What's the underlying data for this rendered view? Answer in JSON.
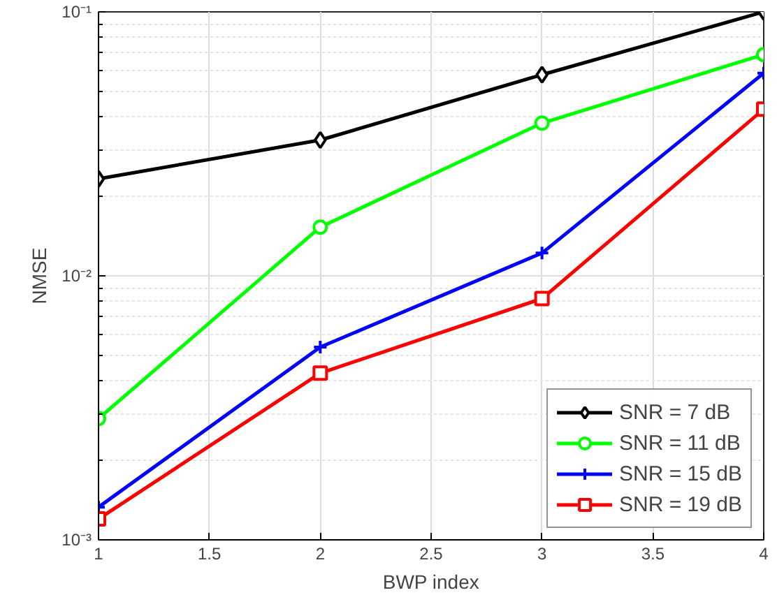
{
  "chart_data": {
    "type": "line",
    "xlabel": "BWP index",
    "ylabel": "NMSE",
    "x": [
      1,
      2,
      3,
      4
    ],
    "series": [
      {
        "name": "SNR = 7 dB",
        "color": "#000000",
        "marker": "diamond",
        "values": [
          0.0233,
          0.0327,
          0.0578,
          0.1
        ]
      },
      {
        "name": "SNR = 11 dB",
        "color": "#00ff00",
        "marker": "circle",
        "values": [
          0.00288,
          0.0153,
          0.0379,
          0.0689
        ]
      },
      {
        "name": "SNR = 15 dB",
        "color": "#0000ff",
        "marker": "cross",
        "values": [
          0.00133,
          0.00537,
          0.0122,
          0.0586
        ]
      },
      {
        "name": "SNR = 19 dB",
        "color": "#ff0000",
        "marker": "square",
        "values": [
          0.0012,
          0.00428,
          0.0082,
          0.0428
        ]
      }
    ],
    "log": "y",
    "xlim": [
      1,
      4
    ],
    "ylim": [
      0.001,
      0.1
    ],
    "xticks": [
      1,
      1.5,
      2,
      2.5,
      3,
      3.5,
      4
    ],
    "yticks": [
      {
        "value": 0.001,
        "label": "10⁻³"
      },
      {
        "value": 0.01,
        "label": "10⁻²"
      },
      {
        "value": 0.1,
        "label": "10⁻¹"
      }
    ],
    "grid": true,
    "legend": "bottom right",
    "line_style": "solid"
  }
}
